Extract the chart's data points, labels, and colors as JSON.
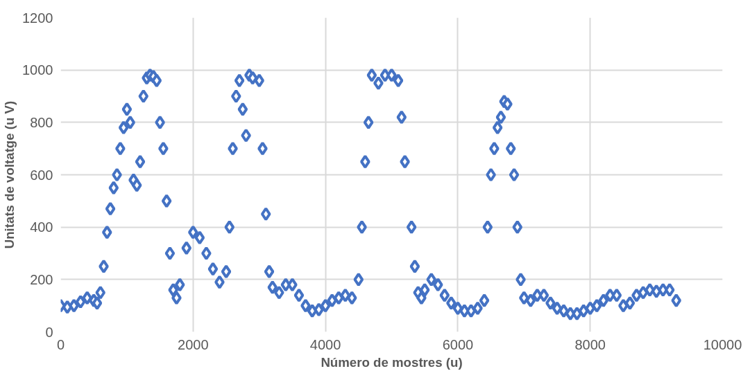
{
  "chart_data": {
    "type": "scatter",
    "xlabel": "Número de mostres (u)",
    "ylabel": "Unitats de voltatge (u V)",
    "x": [
      0,
      100,
      200,
      300,
      400,
      500,
      550,
      600,
      650,
      700,
      750,
      800,
      850,
      900,
      950,
      1000,
      1050,
      1100,
      1150,
      1200,
      1250,
      1300,
      1350,
      1400,
      1450,
      1500,
      1550,
      1600,
      1650,
      1700,
      1750,
      1800,
      1900,
      2000,
      2100,
      2200,
      2300,
      2400,
      2500,
      2550,
      2600,
      2650,
      2700,
      2750,
      2800,
      2850,
      2900,
      3000,
      3050,
      3100,
      3150,
      3200,
      3300,
      3400,
      3500,
      3600,
      3700,
      3800,
      3900,
      4000,
      4100,
      4200,
      4300,
      4400,
      4500,
      4550,
      4600,
      4650,
      4700,
      4800,
      4900,
      5000,
      5100,
      5150,
      5200,
      5300,
      5350,
      5400,
      5450,
      5500,
      5600,
      5700,
      5800,
      5900,
      6000,
      6100,
      6200,
      6300,
      6400,
      6450,
      6500,
      6550,
      6600,
      6650,
      6700,
      6750,
      6800,
      6850,
      6900,
      6950,
      7000,
      7100,
      7200,
      7300,
      7400,
      7500,
      7600,
      7700,
      7800,
      7900,
      8000,
      8100,
      8200,
      8300,
      8400,
      8500,
      8600,
      8700,
      8800,
      8900,
      9000,
      9100,
      9200,
      9300
    ],
    "series": [
      {
        "color": "#4472c4",
        "values": [
          100,
          95,
          100,
          115,
          130,
          120,
          110,
          150,
          250,
          380,
          470,
          550,
          600,
          700,
          780,
          850,
          800,
          580,
          560,
          650,
          900,
          970,
          980,
          975,
          960,
          800,
          700,
          500,
          300,
          160,
          130,
          180,
          320,
          380,
          360,
          300,
          240,
          190,
          230,
          400,
          700,
          900,
          960,
          850,
          750,
          980,
          970,
          960,
          700,
          450,
          230,
          170,
          150,
          180,
          180,
          140,
          100,
          80,
          85,
          100,
          120,
          130,
          140,
          130,
          200,
          400,
          650,
          800,
          980,
          950,
          980,
          980,
          960,
          820,
          650,
          400,
          250,
          150,
          130,
          160,
          200,
          180,
          140,
          110,
          90,
          80,
          80,
          90,
          120,
          400,
          600,
          700,
          780,
          820,
          880,
          870,
          700,
          600,
          400,
          200,
          130,
          120,
          140,
          140,
          110,
          90,
          80,
          70,
          70,
          80,
          90,
          100,
          120,
          140,
          140,
          100,
          110,
          140,
          150,
          160,
          155,
          160,
          160,
          120
        ]
      }
    ],
    "xlim": [
      0,
      10000
    ],
    "xticks": [
      0,
      2000,
      4000,
      6000,
      8000,
      10000
    ],
    "ylim": [
      0,
      1200
    ],
    "yticks": [
      0,
      200,
      400,
      600,
      800,
      1000,
      1200
    ],
    "grid": true,
    "marker": "diamond"
  }
}
